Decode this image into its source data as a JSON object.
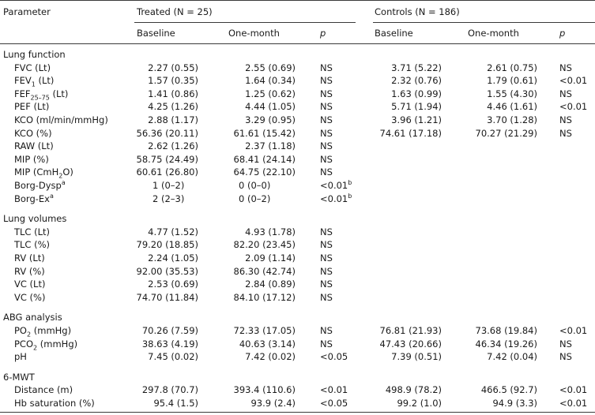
{
  "header": {
    "parameter": "Parameter",
    "treated": "Treated (N = 25)",
    "controls": "Controls (N = 186)",
    "baseline": "Baseline",
    "one_month": "One-month",
    "p": "p"
  },
  "sections": [
    {
      "title": "Lung function",
      "rows": [
        {
          "label": "FVC (Lt)",
          "tb": "2.27 (0.55)",
          "tm": "2.55 (0.69)",
          "tp": "NS",
          "cb": "3.71 (5.22)",
          "cm": "2.61 (0.75)",
          "cp": "NS"
        },
        {
          "label": "FEV",
          "label_sub": "1",
          "label_after": " (Lt)",
          "tb": "1.57 (0.35)",
          "tm": "1.64 (0.34)",
          "tp": "NS",
          "cb": "2.32 (0.76)",
          "cm": "1.79 (0.61)",
          "cp": "<0.01"
        },
        {
          "label": "FEF",
          "label_sub": "25–75",
          "label_after": " (Lt)",
          "tb": "1.41 (0.86)",
          "tm": "1.25 (0.62)",
          "tp": "NS",
          "cb": "1.63 (0.99)",
          "cm": "1.55 (4.30)",
          "cp": "NS"
        },
        {
          "label": "PEF (Lt)",
          "tb": "4.25 (1.26)",
          "tm": "4.44 (1.05)",
          "tp": "NS",
          "cb": "5.71 (1.94)",
          "cm": "4.46 (1.61)",
          "cp": "<0.01"
        },
        {
          "label": "KCO (ml/min/mmHg)",
          "tb": "2.88 (1.17)",
          "tm": "3.29 (0.95)",
          "tp": "NS",
          "cb": "3.96 (1.21)",
          "cm": "3.70 (1.28)",
          "cp": "NS"
        },
        {
          "label": "KCO (%)",
          "tb": "56.36 (20.11)",
          "tm": "61.61 (15.42)",
          "tp": "NS",
          "cb": "74.61 (17.18)",
          "cm": "70.27 (21.29)",
          "cp": "NS"
        },
        {
          "label": "RAW (Lt)",
          "tb": "2.62 (1.26)",
          "tm": "2.37 (1.18)",
          "tp": "NS",
          "cb": "",
          "cm": "",
          "cp": ""
        },
        {
          "label": "MIP (%)",
          "tb": "58.75 (24.49)",
          "tm": "68.41 (24.14)",
          "tp": "NS",
          "cb": "",
          "cm": "",
          "cp": ""
        },
        {
          "label": "MIP (CmH",
          "label_sub": "2",
          "label_after": "O)",
          "tb": "60.61 (26.80)",
          "tm": "64.75 (22.10)",
          "tp": "NS",
          "cb": "",
          "cm": "",
          "cp": ""
        },
        {
          "label": "Borg-Dysp",
          "label_sup": "a",
          "tb": "1 (0–2)",
          "tm": "0 (0–0)",
          "tp": "<0.01",
          "tp_sup": "b",
          "cb": "",
          "cm": "",
          "cp": "",
          "center": true
        },
        {
          "label": "Borg-Ex",
          "label_sup": "a",
          "tb": "2 (2–3)",
          "tm": "0 (0–2)",
          "tp": "<0.01",
          "tp_sup": "b",
          "cb": "",
          "cm": "",
          "cp": "",
          "center": true
        }
      ]
    },
    {
      "title": "Lung volumes",
      "rows": [
        {
          "label": "TLC (Lt)",
          "tb": "4.77 (1.52)",
          "tm": "4.93 (1.78)",
          "tp": "NS",
          "cb": "",
          "cm": "",
          "cp": ""
        },
        {
          "label": "TLC (%)",
          "tb": "79.20 (18.85)",
          "tm": "82.20 (23.45)",
          "tp": "NS",
          "cb": "",
          "cm": "",
          "cp": ""
        },
        {
          "label": "RV (Lt)",
          "tb": "2.24 (1.05)",
          "tm": "2.09 (1.14)",
          "tp": "NS",
          "cb": "",
          "cm": "",
          "cp": ""
        },
        {
          "label": "RV (%)",
          "tb": "92.00 (35.53)",
          "tm": "86.30 (42.74)",
          "tp": "NS",
          "cb": "",
          "cm": "",
          "cp": ""
        },
        {
          "label": "VC (Lt)",
          "tb": "2.53 (0.69)",
          "tm": "2.84 (0.89)",
          "tp": "NS",
          "cb": "",
          "cm": "",
          "cp": ""
        },
        {
          "label": "VC (%)",
          "tb": "74.70 (11.84)",
          "tm": "84.10 (17.12)",
          "tp": "NS",
          "cb": "",
          "cm": "",
          "cp": ""
        }
      ]
    },
    {
      "title": "ABG analysis",
      "rows": [
        {
          "label": "PO",
          "label_sub": "2",
          "label_after": " (mmHg)",
          "tb": "70.26 (7.59)",
          "tm": "72.33 (17.05)",
          "tp": "NS",
          "cb": "76.81 (21.93)",
          "cm": "73.68 (19.84)",
          "cp": "<0.01"
        },
        {
          "label": "PCO",
          "label_sub": "2",
          "label_after": " (mmHg)",
          "tb": "38.63 (4.19)",
          "tm": "40.63 (3.14)",
          "tp": "NS",
          "cb": "47.43 (20.66)",
          "cm": "46.34 (19.26)",
          "cp": "NS"
        },
        {
          "label": "pH",
          "tb": "7.45 (0.02)",
          "tm": "7.42 (0.02)",
          "tp": "<0.05",
          "cb": "7.39 (0.51)",
          "cm": "7.42 (0.04)",
          "cp": "NS"
        }
      ]
    },
    {
      "title": "6-MWT",
      "rows": [
        {
          "label": "Distance (m)",
          "tb": "297.8 (70.7)",
          "tm": "393.4 (110.6)",
          "tp": "<0.01",
          "cb": "498.9 (78.2)",
          "cm": "466.5 (92.7)",
          "cp": "<0.01"
        },
        {
          "label": "Hb saturation (%)",
          "tb": "95.4 (1.5)",
          "tm": "93.9 (2.4)",
          "tp": "<0.05",
          "cb": "99.2 (1.0)",
          "cm": "94.9 (3.3)",
          "cp": "<0.01"
        }
      ]
    }
  ]
}
